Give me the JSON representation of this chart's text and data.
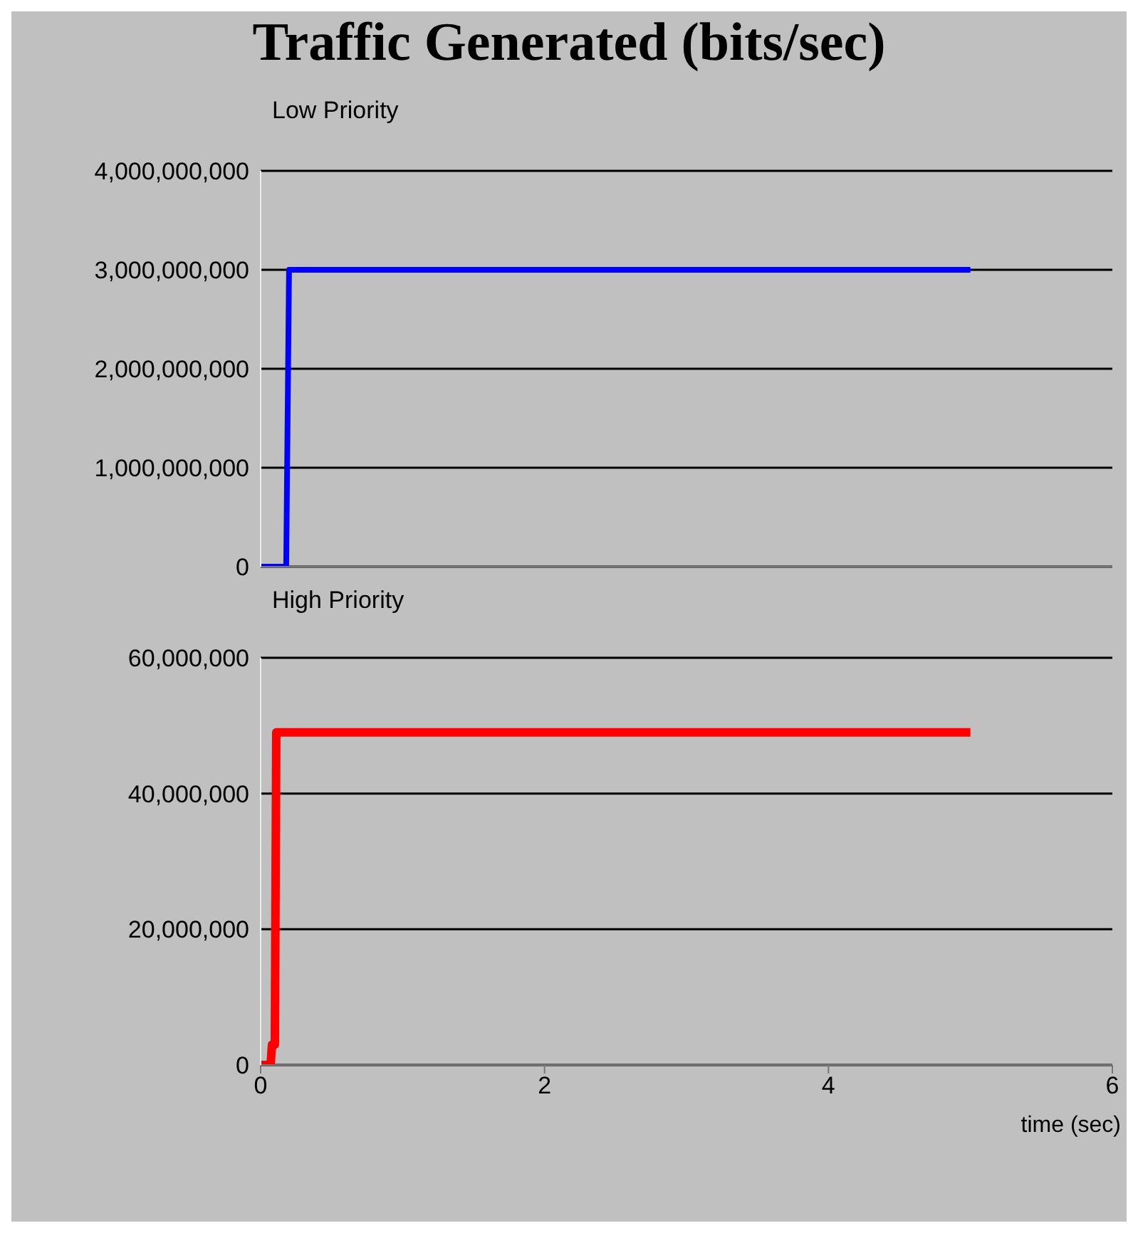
{
  "chart_data": [
    {
      "type": "line",
      "title": "Traffic Generated (bits/sec)",
      "subtitle": "Low Priority",
      "xlim": [
        0,
        6
      ],
      "xticks": [
        0,
        2,
        4,
        6
      ],
      "ylim": [
        0,
        4000000000
      ],
      "yticks": [
        0,
        {
          "value": 1000000000,
          "label": "1,000,000,000"
        },
        {
          "value": 2000000000,
          "label": "2,000,000,000"
        },
        {
          "value": 3000000000,
          "label": "3,000,000,000"
        },
        {
          "value": 4000000000,
          "label": "4,000,000,000"
        }
      ],
      "grid": "y",
      "tick_labels": "y",
      "series": [
        {
          "color": "#0000ff",
          "x": [
            0,
            0.18,
            0.2,
            5
          ],
          "values": [
            0,
            0,
            3000000000,
            3000000000
          ]
        }
      ]
    },
    {
      "type": "line",
      "subtitle": "High Priority",
      "xlabel": "time (sec)",
      "xlim": [
        0,
        6
      ],
      "xticks": [
        0,
        2,
        4,
        6
      ],
      "ylim": [
        0,
        60000000
      ],
      "yticks": [
        0,
        {
          "value": 20000000,
          "label": "20,000,000"
        },
        {
          "value": 40000000,
          "label": "40,000,000"
        },
        {
          "value": 60000000,
          "label": "60,000,000"
        }
      ],
      "grid": "y",
      "series": [
        {
          "color": "#ff0000",
          "x": [
            0,
            0.07,
            0.08,
            0.1,
            0.11,
            5
          ],
          "values": [
            0,
            0,
            3000000,
            3000000,
            49000000,
            49000000
          ]
        }
      ]
    }
  ]
}
